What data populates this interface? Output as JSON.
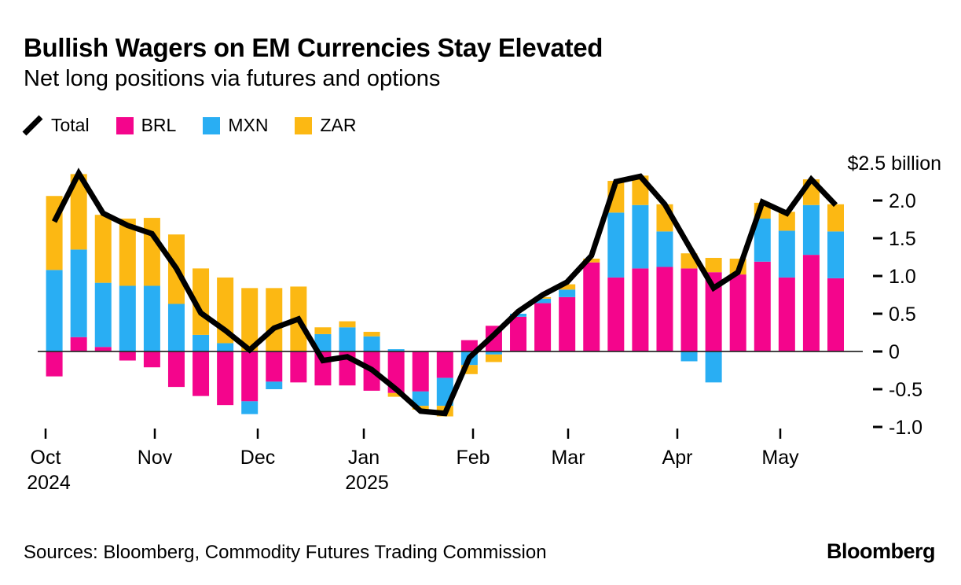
{
  "header": {
    "title": "Bullish Wagers on EM Currencies Stay Elevated",
    "subtitle": "Net long positions via futures and options"
  },
  "legend": {
    "items": [
      {
        "label": "Total",
        "swatch": "line",
        "color": "#000000"
      },
      {
        "label": "BRL",
        "swatch": "square",
        "color": "#F4058C"
      },
      {
        "label": "MXN",
        "swatch": "square",
        "color": "#29AEF3"
      },
      {
        "label": "ZAR",
        "swatch": "square",
        "color": "#FCB813"
      }
    ]
  },
  "chart_data": {
    "type": "bar",
    "subtype": "stacked-weekly-bars-with-total-line",
    "title": "Bullish Wagers on EM Currencies Stay Elevated",
    "subtitle": "Net long positions via futures and options",
    "unit": "billions of US dollars",
    "weeks": 33,
    "grid": "off",
    "legend_position": "top-left",
    "x_axis": {
      "months": [
        {
          "label": "Oct",
          "year": "2024"
        },
        {
          "label": "Nov"
        },
        {
          "label": "Dec"
        },
        {
          "label": "Jan",
          "year": "2025"
        },
        {
          "label": "Feb"
        },
        {
          "label": "Mar"
        },
        {
          "label": "Apr"
        },
        {
          "label": "May"
        }
      ]
    },
    "y_axis": {
      "unit_label": "$2.5 billion",
      "range": [
        -1.1,
        2.5
      ],
      "ticks": [
        {
          "value": 2.0,
          "label": "2.0"
        },
        {
          "value": 1.5,
          "label": "1.5"
        },
        {
          "value": 1.0,
          "label": "1.0"
        },
        {
          "value": 0.5,
          "label": "0.5"
        },
        {
          "value": 0,
          "label": "0"
        },
        {
          "value": -0.5,
          "label": "-0.5"
        },
        {
          "value": -1.0,
          "label": "-1.0"
        }
      ]
    },
    "series": [
      {
        "name": "BRL",
        "color": "#F4058C",
        "values": [
          -0.33,
          0.19,
          0.06,
          -0.12,
          -0.21,
          -0.47,
          -0.59,
          -0.71,
          -0.66,
          -0.4,
          -0.41,
          -0.45,
          -0.45,
          -0.52,
          -0.55,
          -0.53,
          -0.35,
          0.15,
          0.34,
          0.46,
          0.64,
          0.72,
          1.18,
          0.98,
          1.1,
          1.12,
          1.1,
          1.05,
          1.02,
          1.19,
          0.98,
          1.28,
          0.97
        ]
      },
      {
        "name": "MXN",
        "color": "#29AEF3",
        "values": [
          1.08,
          1.16,
          0.85,
          0.87,
          0.87,
          0.63,
          0.22,
          0.11,
          -0.17,
          -0.1,
          0,
          0.23,
          0.32,
          0.2,
          0.03,
          -0.19,
          -0.37,
          -0.18,
          -0.04,
          0.04,
          0.06,
          0.1,
          0,
          0.86,
          0.84,
          0.47,
          -0.13,
          -0.41,
          0,
          0.57,
          0.62,
          0.66,
          0.62
        ]
      },
      {
        "name": "ZAR",
        "color": "#FCB813",
        "values": [
          0.98,
          1.0,
          0.9,
          0.89,
          0.9,
          0.92,
          0.88,
          0.87,
          0.84,
          0.84,
          0.86,
          0.09,
          0.08,
          0.06,
          -0.05,
          -0.05,
          -0.14,
          -0.12,
          -0.1,
          0,
          0.02,
          0.07,
          0.05,
          0.42,
          0.39,
          0.36,
          0.2,
          0.19,
          0.21,
          0.21,
          0.25,
          0.34,
          0.36
        ]
      }
    ],
    "total_line": {
      "name": "Total",
      "color": "#000000",
      "values": [
        1.72,
        2.36,
        1.83,
        1.67,
        1.56,
        1.1,
        0.51,
        0.28,
        0.02,
        0.31,
        0.43,
        -0.12,
        -0.07,
        -0.24,
        -0.5,
        -0.79,
        -0.82,
        -0.08,
        0.22,
        0.53,
        0.75,
        0.92,
        1.27,
        2.25,
        2.32,
        1.95,
        1.39,
        0.84,
        1.05,
        1.98,
        1.83,
        2.28,
        1.94
      ]
    }
  },
  "footer": {
    "sources": "Sources: Bloomberg, Commodity Futures Trading Commission",
    "brand": "Bloomberg"
  }
}
